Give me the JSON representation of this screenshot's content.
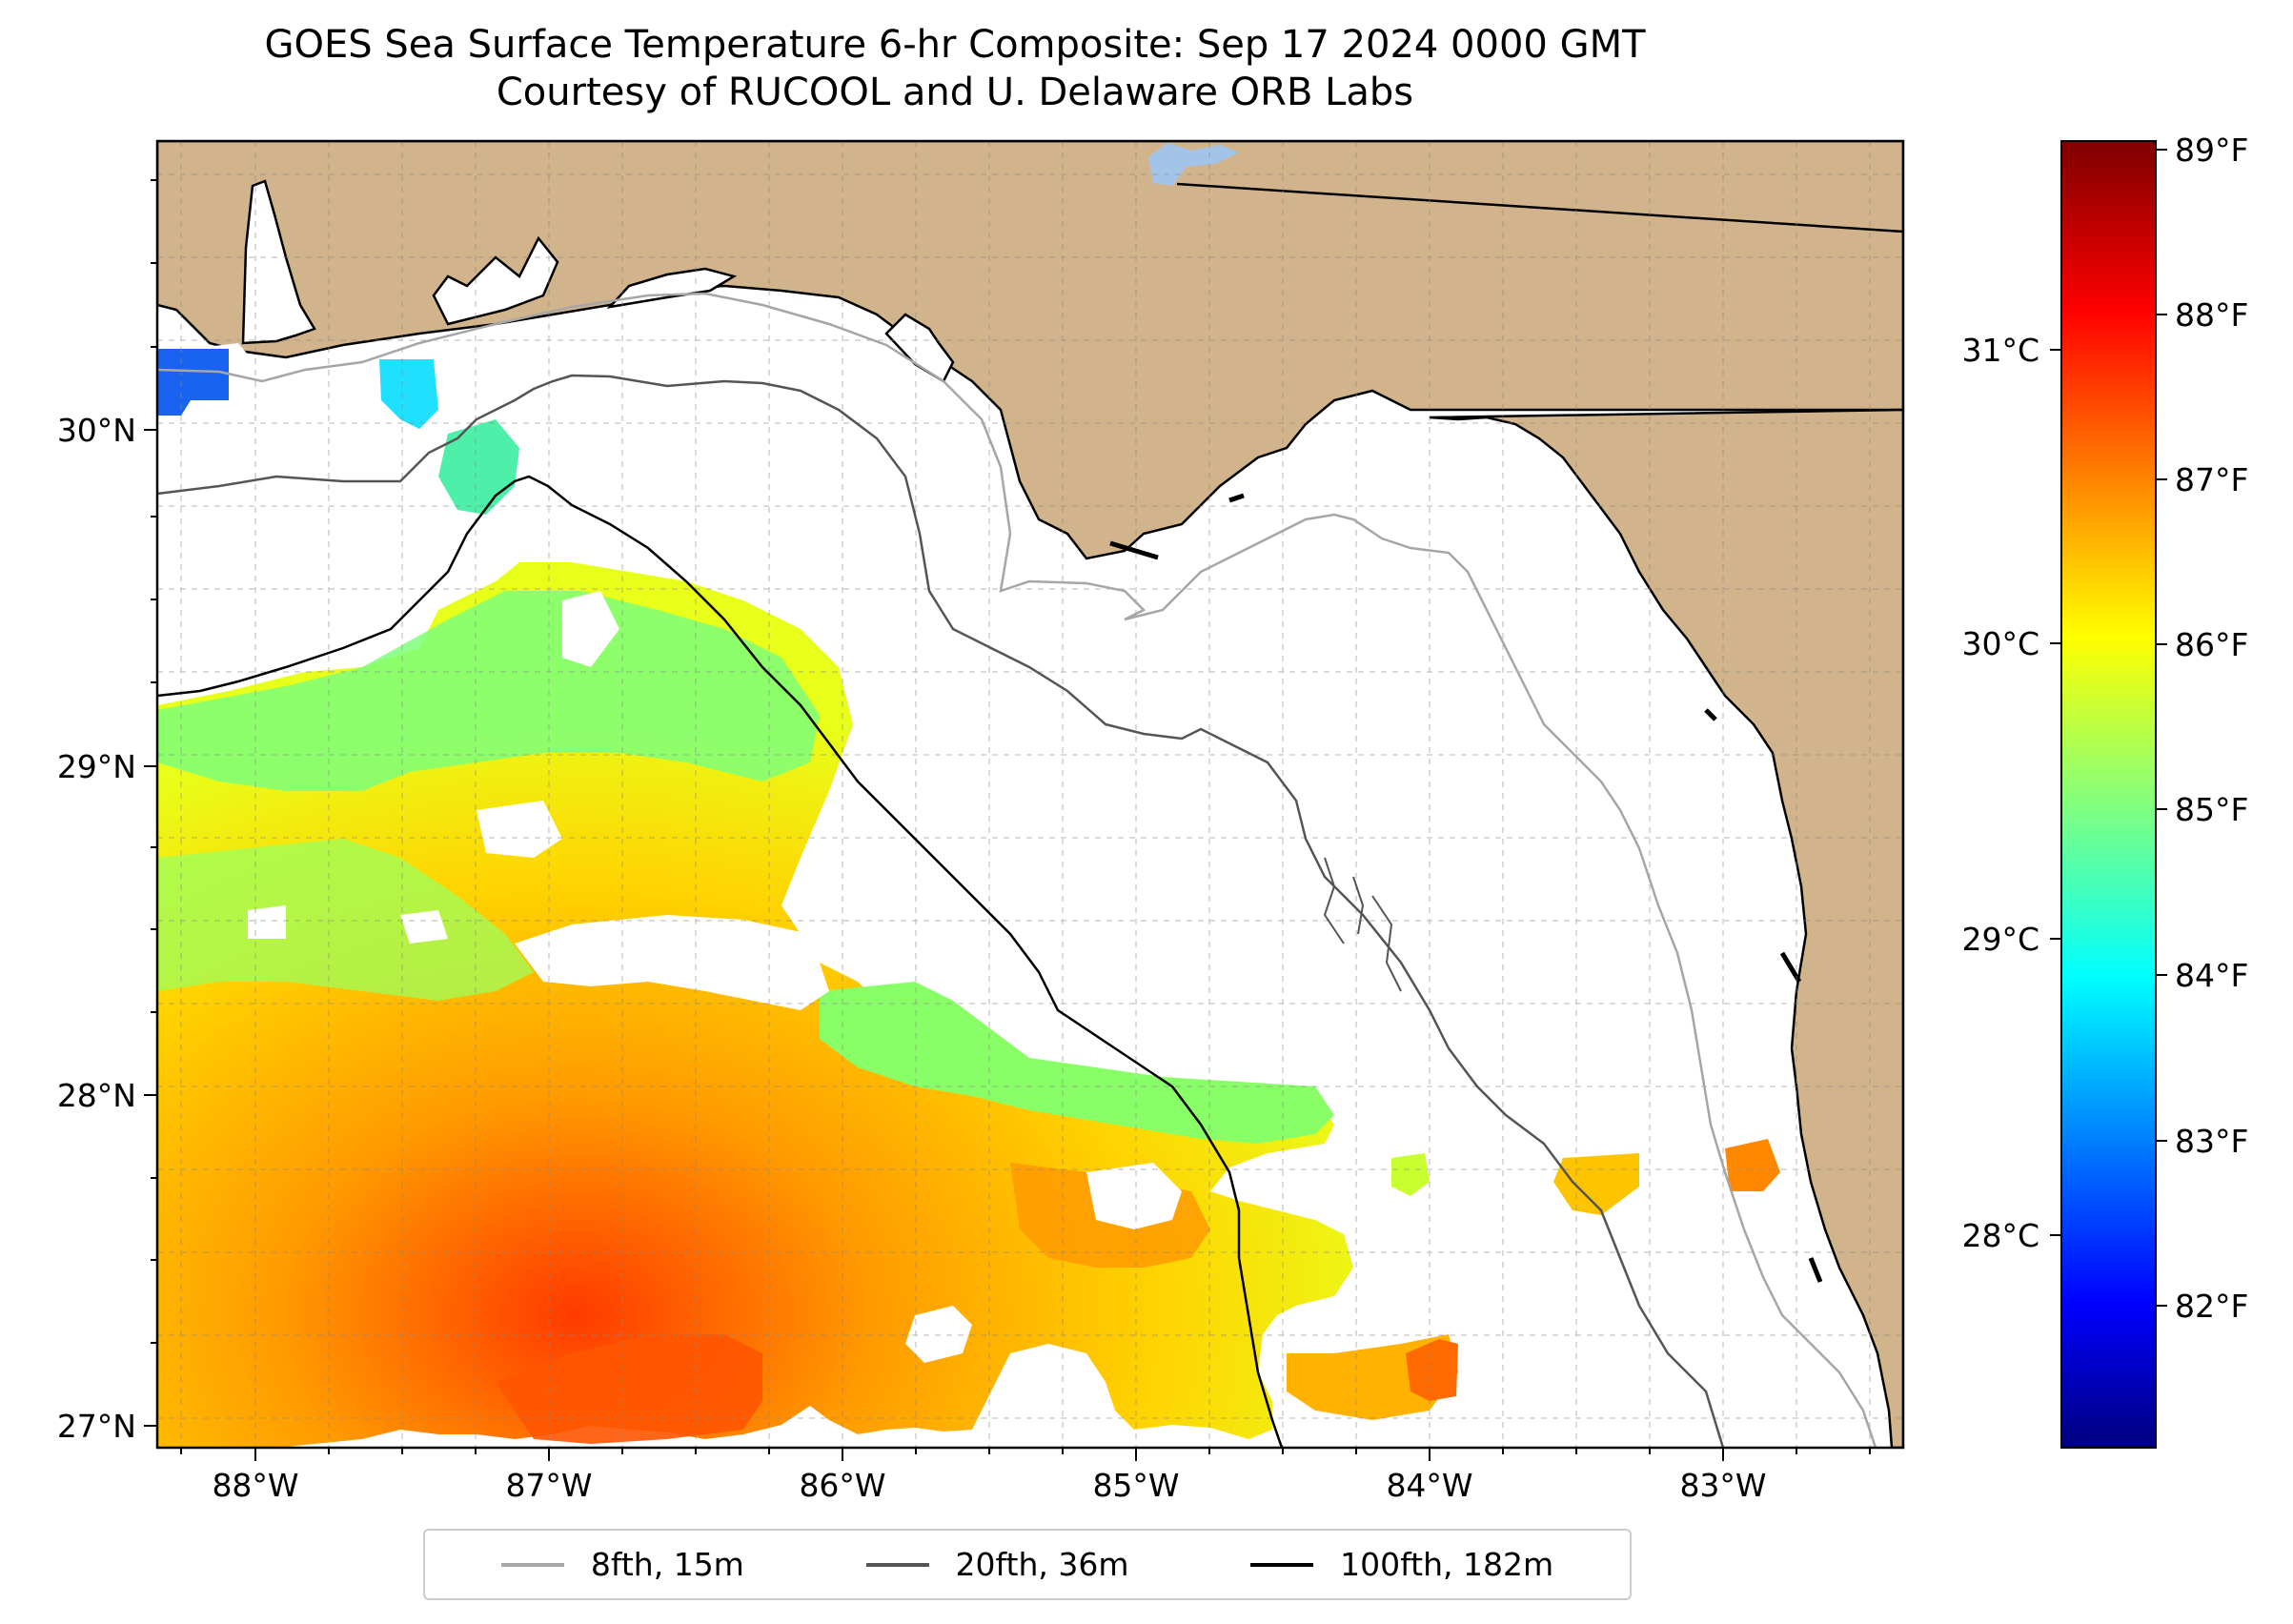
{
  "title": {
    "line1": "GOES Sea Surface Temperature 6-hr Composite: Sep 17 2024 0000 GMT",
    "line2": "Courtesy of RUCOOL and U. Delaware ORB Labs"
  },
  "map": {
    "extent": {
      "lon_min": -88.33,
      "lon_max": -82.37,
      "lat_min": 26.93,
      "lat_max": 30.85
    },
    "land_color": "#d2b48c",
    "grid": true,
    "x_ticks": [
      {
        "value": -88,
        "label": "88°W"
      },
      {
        "value": -87,
        "label": "87°W"
      },
      {
        "value": -86,
        "label": "86°W"
      },
      {
        "value": -85,
        "label": "85°W"
      },
      {
        "value": -84,
        "label": "84°W"
      },
      {
        "value": -83,
        "label": "83°W"
      }
    ],
    "y_ticks": [
      {
        "value": 27,
        "label": "27°N"
      },
      {
        "value": 28,
        "label": "28°N"
      },
      {
        "value": 29,
        "label": "29°N"
      },
      {
        "value": 30,
        "label": "30°N"
      }
    ]
  },
  "colorbar": {
    "colormap": "jet",
    "range_f": [
      81.3,
      89.1
    ],
    "fahrenheit_ticks": [
      "82°F",
      "83°F",
      "84°F",
      "85°F",
      "86°F",
      "87°F",
      "88°F",
      "89°F"
    ],
    "celsius_ticks": [
      "28°C",
      "29°C",
      "30°C",
      "31°C"
    ]
  },
  "legend": {
    "placement": "bottom-center",
    "items": [
      {
        "label": "8fth, 15m",
        "color": "#a6a6a6"
      },
      {
        "label": "20fth, 36m",
        "color": "#555555"
      },
      {
        "label": "100fth, 182m",
        "color": "#000000"
      }
    ]
  }
}
